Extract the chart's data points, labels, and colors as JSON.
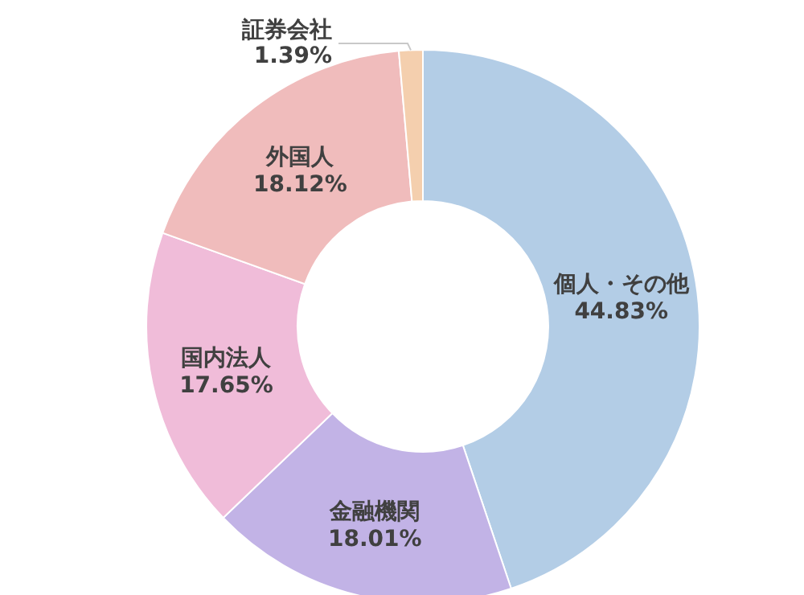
{
  "chart_data": {
    "type": "donut",
    "categories": [
      "個人・その他",
      "金融機関",
      "国内法人",
      "外国人",
      "証券会社"
    ],
    "values": [
      44.83,
      18.01,
      17.65,
      18.12,
      1.39
    ],
    "colors": [
      "#b3cde6",
      "#c2b3e6",
      "#f0bcd9",
      "#f0bcbc",
      "#f4cfae"
    ],
    "value_labels": [
      "44.83%",
      "18.01%",
      "17.65%",
      "18.12%",
      "1.39%"
    ],
    "legend": false
  }
}
